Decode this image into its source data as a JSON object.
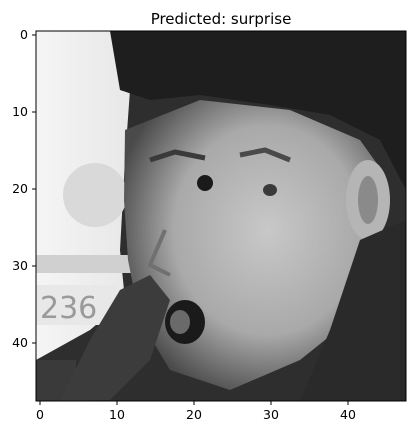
{
  "figure": {
    "title": "Predicted: surprise"
  },
  "image": {
    "description_kind": "grayscale-48x48-face",
    "pixel_grid": [
      48,
      48
    ]
  },
  "axes": {
    "x_ticks": [
      "0",
      "10",
      "20",
      "30",
      "40"
    ],
    "y_ticks": [
      "0",
      "10",
      "20",
      "30",
      "40"
    ],
    "x_range": [
      -0.5,
      47.5
    ],
    "y_range": [
      -0.5,
      47.5
    ]
  }
}
